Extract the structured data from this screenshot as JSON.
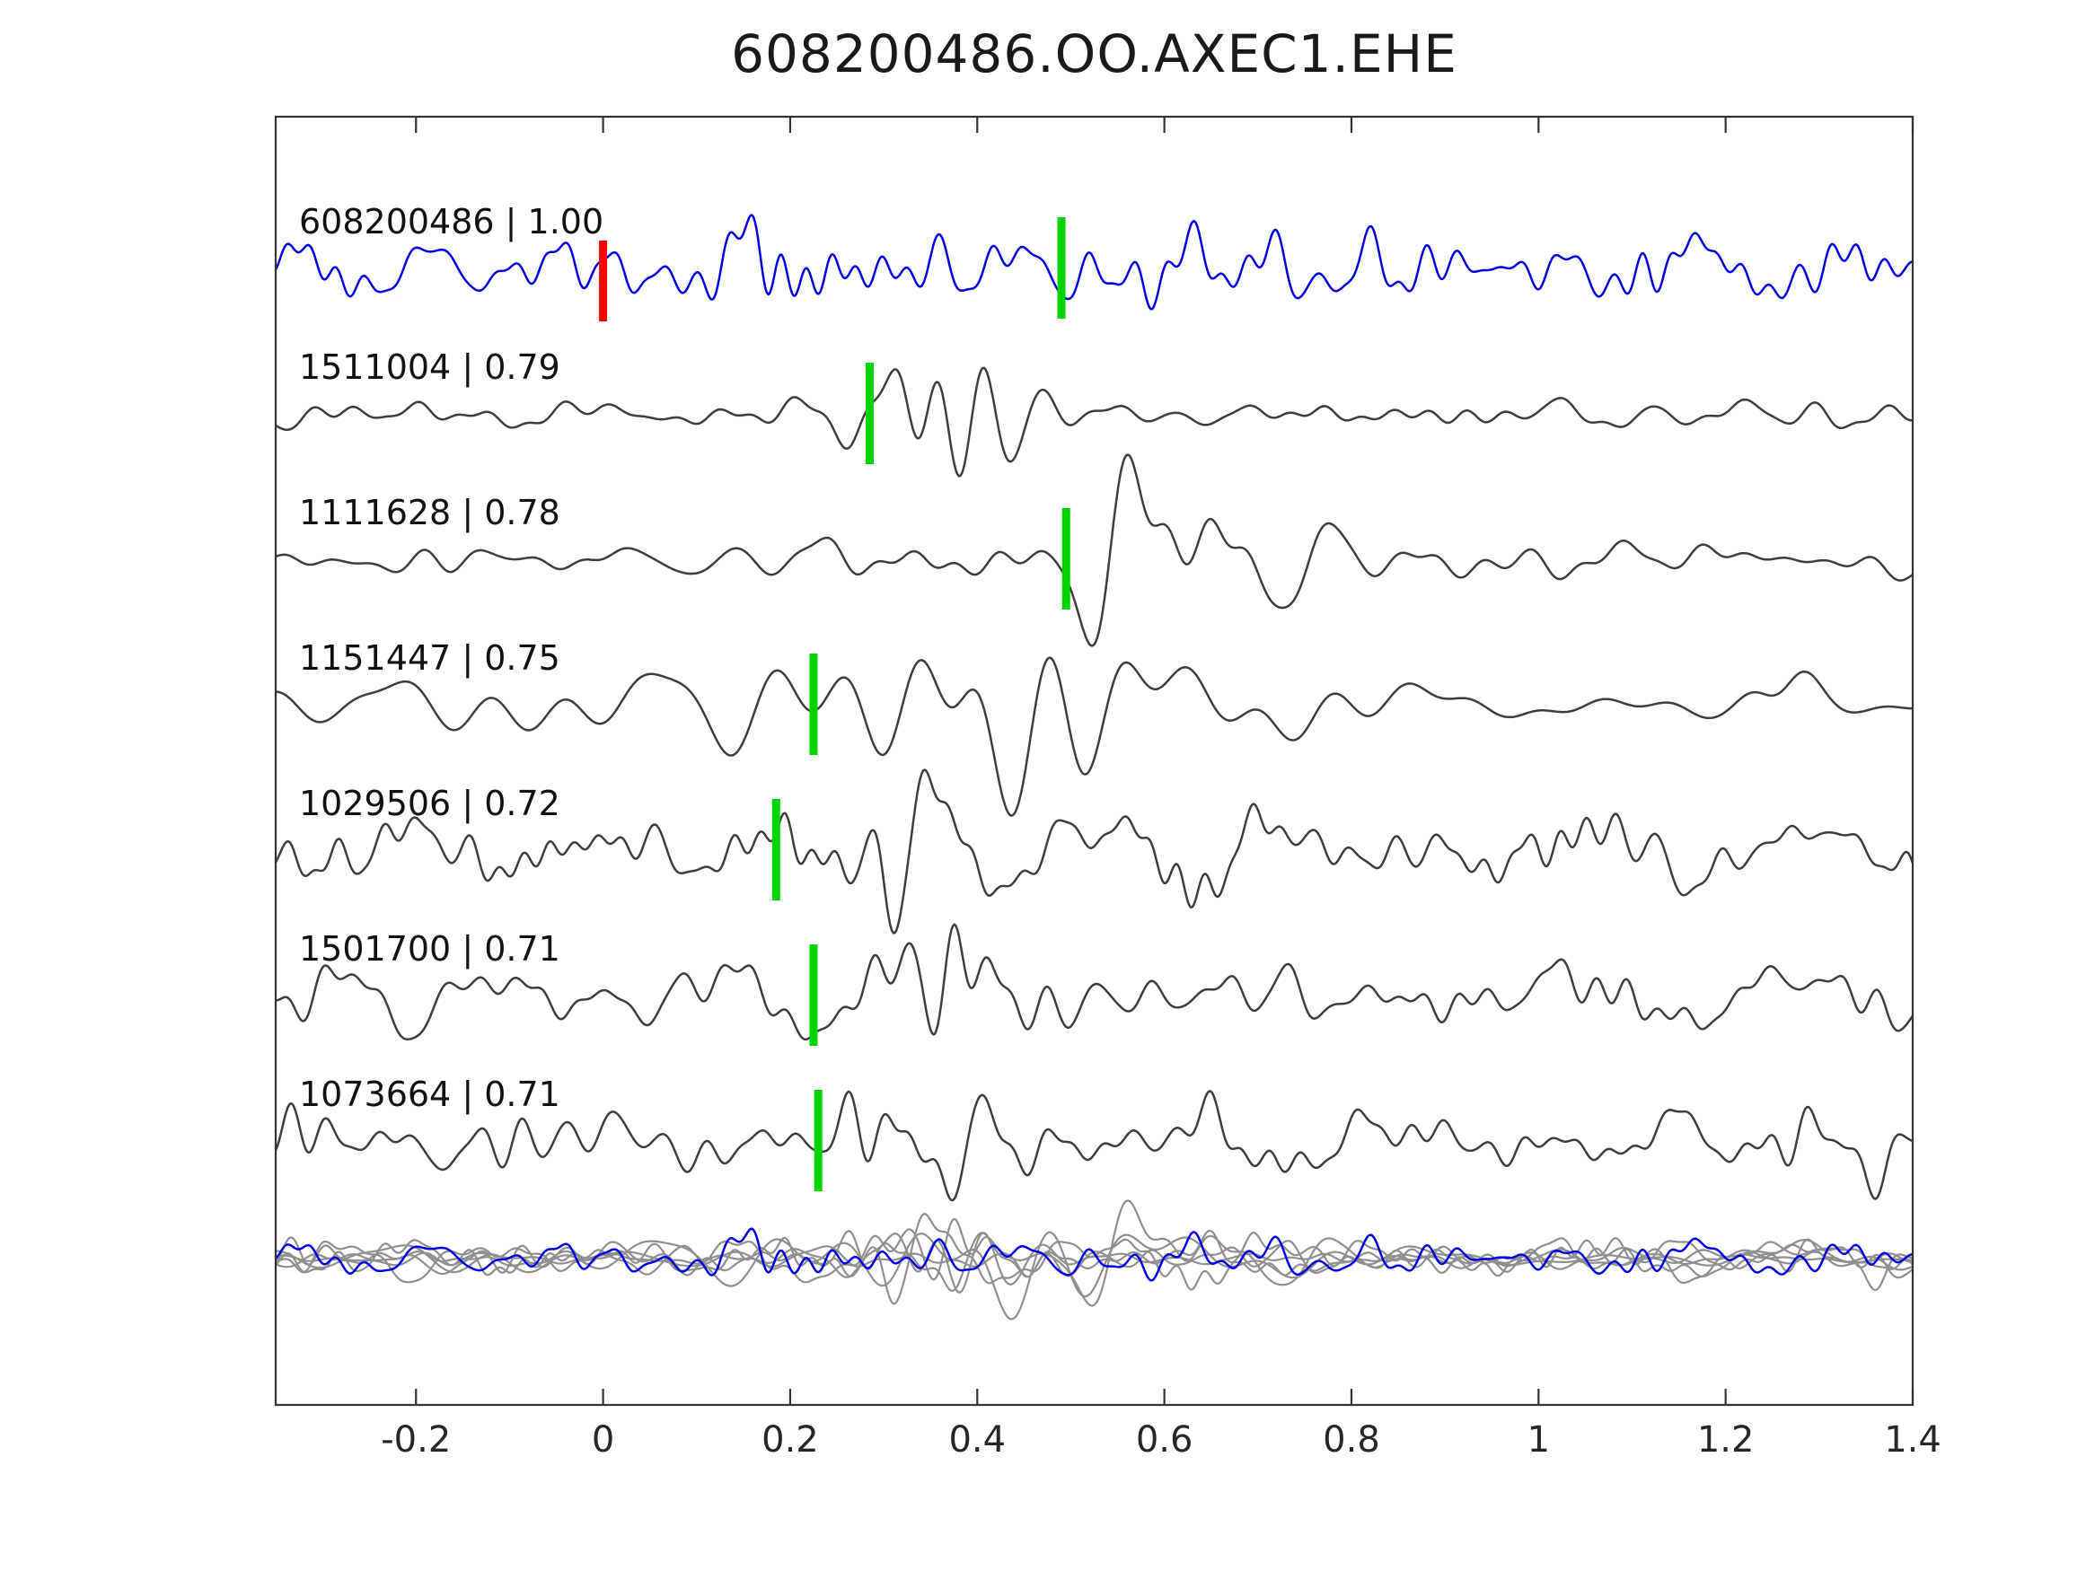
{
  "title": "608200486.OO.AXEC1.EHE",
  "colors": {
    "reference": "#0000e6",
    "trace": "#3d3d3d",
    "overlay": "#8f8f8f",
    "pick": "#00d400",
    "ref_pick": "#ff0000",
    "axis": "#333333",
    "tick_text": "#262626"
  },
  "chart_data": {
    "type": "line",
    "title": "608200486.OO.AXEC1.EHE",
    "xlabel": "",
    "ylabel": "",
    "xlim": [
      -0.35,
      1.4
    ],
    "x_ticks": [
      -0.2,
      0,
      0.2,
      0.4,
      0.6,
      0.8,
      1,
      1.2,
      1.4
    ],
    "x_tick_labels": [
      "-0.2",
      "0",
      "0.2",
      "0.4",
      "0.6",
      "0.8",
      "1",
      "1.2",
      "1.4"
    ],
    "grid": false,
    "legend": "none",
    "description": "Template waveform (blue, top) compared against 6 best-matching detection waveforms (dark gray) with cross-correlation coefficients; green bars mark pick times, red bar marks template zero time; bottom row overlays all traces (gray) with the template (blue).",
    "traces": [
      {
        "id": "608200486",
        "corr": "1.00",
        "label": "608200486 | 1.00",
        "role": "reference",
        "pick_x": 0.49,
        "ref_mark_x": 0.0,
        "seed": 101,
        "base": 0.55,
        "burst": 0.45,
        "center": 0.56,
        "width": 0.1,
        "fmin": 4,
        "fmax": 42,
        "amp": 75
      },
      {
        "id": "1511004",
        "corr": "0.79",
        "label": "1511004 | 0.79",
        "role": "detection",
        "pick_x": 0.285,
        "seed": 202,
        "base": 0.22,
        "burst": 1.3,
        "center": 0.36,
        "width": 0.08,
        "fmin": 2,
        "fmax": 28,
        "amp": 80
      },
      {
        "id": "1111628",
        "corr": "0.78",
        "label": "1111628 | 0.78",
        "role": "detection",
        "pick_x": 0.495,
        "seed": 303,
        "base": 0.22,
        "burst": 1.1,
        "center": 0.6,
        "width": 0.12,
        "fmin": 2,
        "fmax": 26,
        "amp": 80
      },
      {
        "id": "1151447",
        "corr": "0.75",
        "label": "1151447 | 0.75",
        "role": "detection",
        "pick_x": 0.225,
        "seed": 404,
        "base": 0.35,
        "burst": 1.2,
        "center": 0.42,
        "width": 0.13,
        "fmin": 2,
        "fmax": 14,
        "amp": 85,
        "burst2": [
          1.26,
          0.045,
          0.9
        ]
      },
      {
        "id": "1029506",
        "corr": "0.72",
        "label": "1029506 | 0.72",
        "role": "detection",
        "pick_x": 0.185,
        "seed": 505,
        "base": 0.5,
        "burst": 1.0,
        "center": 0.3,
        "width": 0.09,
        "fmin": 3,
        "fmax": 40,
        "amp": 70
      },
      {
        "id": "1501700",
        "corr": "0.71",
        "label": "1501700 | 0.71",
        "role": "detection",
        "pick_x": 0.225,
        "seed": 606,
        "base": 0.5,
        "burst": 1.2,
        "center": 0.34,
        "width": 0.08,
        "fmin": 3,
        "fmax": 34,
        "amp": 70
      },
      {
        "id": "1073664",
        "corr": "0.71",
        "label": "1073664 | 0.71",
        "role": "detection",
        "pick_x": 0.23,
        "seed": 707,
        "base": 0.5,
        "burst": 1.2,
        "center": 0.36,
        "width": 0.09,
        "fmin": 3,
        "fmax": 34,
        "amp": 70
      }
    ],
    "overlay_row": {
      "includes": [
        "1511004",
        "1111628",
        "1151447",
        "1029506",
        "1501700",
        "1073664",
        "608200486"
      ],
      "reference_on_top": true
    }
  }
}
